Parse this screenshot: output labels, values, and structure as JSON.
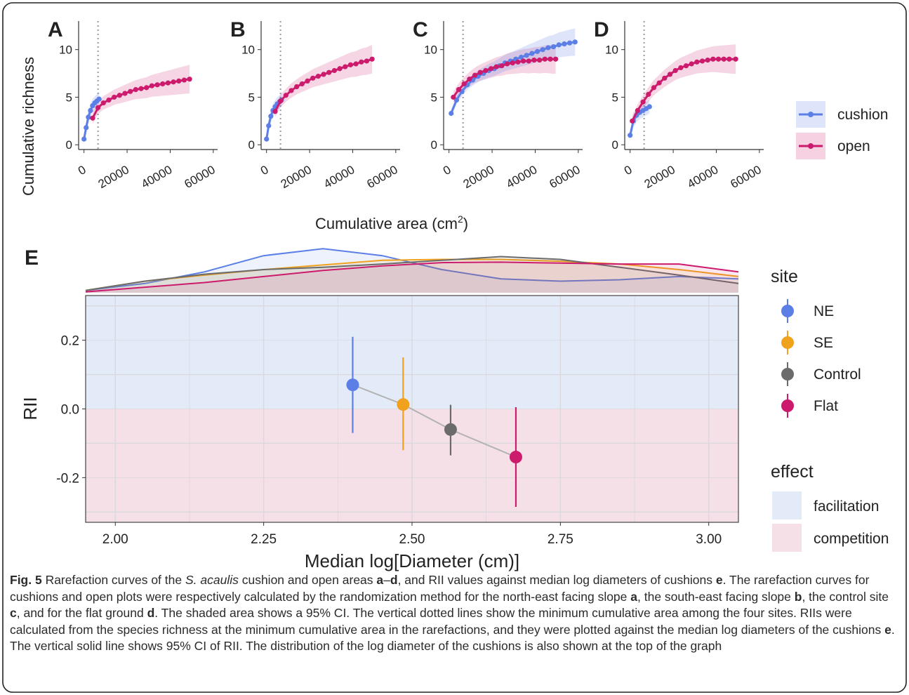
{
  "figure": {
    "panels_top": [
      {
        "label": "A",
        "cushion": {
          "x": [
            0,
            1000,
            2000,
            3000,
            4000,
            5000,
            6000,
            7000
          ],
          "y": [
            0.6,
            1.8,
            2.9,
            3.6,
            4.1,
            4.4,
            4.6,
            4.8
          ],
          "lo": [
            0.2,
            1.2,
            2.2,
            2.9,
            3.4,
            3.7,
            3.9,
            4.0
          ],
          "hi": [
            1.0,
            2.4,
            3.6,
            4.3,
            4.8,
            5.1,
            5.3,
            5.6
          ]
        },
        "open": {
          "x": [
            4000,
            6500,
            9000,
            11500,
            14000,
            16500,
            19000,
            21500,
            24000,
            26500,
            29000,
            31500,
            34000,
            36500,
            39000,
            41500,
            44000,
            46500,
            49000
          ],
          "y": [
            2.8,
            3.9,
            4.4,
            4.7,
            5.0,
            5.2,
            5.4,
            5.6,
            5.8,
            5.9,
            6.0,
            6.2,
            6.3,
            6.4,
            6.5,
            6.6,
            6.7,
            6.8,
            6.9
          ]
        }
      },
      {
        "label": "B",
        "cushion": {
          "x": [
            0,
            1000,
            2000,
            3000,
            4000,
            5000,
            6000,
            7000
          ],
          "y": [
            0.6,
            2.0,
            3.0,
            3.6,
            4.0,
            4.3,
            4.5,
            4.7
          ],
          "lo": [
            0.2,
            1.4,
            2.3,
            2.9,
            3.3,
            3.6,
            3.8,
            4.0
          ],
          "hi": [
            1.0,
            2.6,
            3.7,
            4.3,
            4.7,
            5.0,
            5.2,
            5.5
          ]
        },
        "open": {
          "x": [
            4000,
            6500,
            9000,
            11500,
            14000,
            16500,
            19000,
            21500,
            24000,
            26500,
            29000,
            31500,
            34000,
            36500,
            39000,
            41500,
            44000,
            46500,
            49000
          ],
          "y": [
            3.5,
            4.6,
            5.2,
            5.7,
            6.1,
            6.4,
            6.7,
            7.0,
            7.2,
            7.4,
            7.6,
            7.8,
            8.0,
            8.2,
            8.4,
            8.5,
            8.7,
            8.8,
            9.0
          ]
        }
      },
      {
        "label": "C",
        "cushion": {
          "x": [
            1000,
            3500,
            6000,
            8500,
            11000,
            13500,
            16000,
            18500,
            21000,
            23500,
            26000,
            28500,
            31000,
            33500,
            36000,
            38500,
            41000,
            43500,
            46000,
            48500,
            51000,
            53500,
            56000,
            58500
          ],
          "y": [
            3.3,
            4.7,
            5.6,
            6.3,
            6.8,
            7.2,
            7.5,
            7.8,
            8.0,
            8.3,
            8.6,
            8.8,
            9.0,
            9.2,
            9.4,
            9.6,
            9.8,
            10.0,
            10.2,
            10.3,
            10.5,
            10.6,
            10.7,
            10.8
          ]
        },
        "open": {
          "x": [
            2000,
            4500,
            7000,
            9500,
            12000,
            14500,
            17000,
            19500,
            22000,
            24500,
            27000,
            29500,
            32000,
            34500,
            37000,
            39500,
            42000,
            44500,
            47000,
            49500
          ],
          "y": [
            5.0,
            5.8,
            6.4,
            6.9,
            7.3,
            7.6,
            7.8,
            8.0,
            8.2,
            8.3,
            8.5,
            8.6,
            8.7,
            8.8,
            8.8,
            8.9,
            8.9,
            9.0,
            9.0,
            9.0
          ]
        }
      },
      {
        "label": "D",
        "cushion": {
          "x": [
            0,
            1500,
            3000,
            4500,
            6000,
            7500,
            9000
          ],
          "y": [
            1.0,
            2.5,
            3.1,
            3.4,
            3.6,
            3.8,
            4.0
          ],
          "lo": [
            0.5,
            1.8,
            2.4,
            2.7,
            2.9,
            3.1,
            3.3
          ],
          "hi": [
            1.5,
            3.2,
            3.8,
            4.1,
            4.3,
            4.5,
            4.7
          ]
        },
        "open": {
          "x": [
            1000,
            3500,
            6000,
            8500,
            11000,
            13500,
            16000,
            18500,
            21000,
            23500,
            26000,
            28500,
            31000,
            33500,
            36000,
            38500,
            41000,
            43500,
            46000,
            49000
          ],
          "y": [
            2.5,
            3.6,
            4.5,
            5.3,
            6.0,
            6.5,
            7.0,
            7.4,
            7.8,
            8.1,
            8.3,
            8.5,
            8.7,
            8.8,
            8.9,
            9.0,
            9.0,
            9.0,
            9.0,
            9.0
          ]
        }
      }
    ],
    "top_yticks": [
      "0",
      "5",
      "10"
    ],
    "top_xticks": [
      "0",
      "20000",
      "40000",
      "60000"
    ],
    "top_ylabel": "Cumulative richness",
    "top_xlabel": "Cumulative area (cm",
    "top_xlabel_sup": "2",
    "top_xlabel_close": ")",
    "legend_top": [
      "cushion",
      "open"
    ],
    "panel_e_label": "E",
    "legend_site_title": "site",
    "legend_effect_title": "effect",
    "effect_items": [
      "facilitation",
      "competition"
    ],
    "e_xlabel": "Median log[Diameter (cm)]",
    "e_ylabel": "RII",
    "e_xticks": [
      "2.00",
      "2.25",
      "2.50",
      "2.75",
      "3.00"
    ],
    "e_yticks": [
      "0.2",
      "0.0",
      "-0.2"
    ],
    "colors": {
      "cushion": "#5b7fe6",
      "open": "#cc1a6c",
      "NE": "#5b7fe6",
      "SE": "#f0a21f",
      "Control": "#6b6b6b",
      "Flat": "#cc1a6c",
      "facil_bg": "#e4ebf8",
      "comp_bg": "#f6e0e8",
      "grid": "#d8d8dd"
    }
  },
  "chart_data": [
    {
      "type": "line",
      "title": "A",
      "xlabel": "Cumulative area (cm2)",
      "ylabel": "Cumulative richness",
      "xlim": [
        -2500,
        62000
      ],
      "ylim": [
        -0.5,
        13
      ],
      "series": [
        {
          "name": "cushion",
          "x": [
            0,
            1000,
            2000,
            3000,
            4000,
            5000,
            6000,
            7000
          ],
          "values": [
            0.6,
            1.8,
            2.9,
            3.6,
            4.1,
            4.4,
            4.6,
            4.8
          ]
        },
        {
          "name": "open",
          "x": [
            4000,
            9000,
            14000,
            19000,
            24000,
            29000,
            34000,
            39000,
            44000,
            49000
          ],
          "values": [
            2.8,
            4.4,
            5.0,
            5.4,
            5.8,
            6.0,
            6.3,
            6.5,
            6.7,
            6.9
          ]
        }
      ]
    },
    {
      "type": "line",
      "title": "B",
      "xlabel": "Cumulative area (cm2)",
      "ylabel": "Cumulative richness",
      "xlim": [
        -2500,
        62000
      ],
      "ylim": [
        -0.5,
        13
      ],
      "series": [
        {
          "name": "cushion",
          "x": [
            0,
            1000,
            2000,
            3000,
            4000,
            5000,
            6000,
            7000
          ],
          "values": [
            0.6,
            2.0,
            3.0,
            3.6,
            4.0,
            4.3,
            4.5,
            4.7
          ]
        },
        {
          "name": "open",
          "x": [
            4000,
            9000,
            14000,
            19000,
            24000,
            29000,
            34000,
            39000,
            44000,
            49000
          ],
          "values": [
            3.5,
            5.2,
            6.1,
            6.7,
            7.2,
            7.6,
            8.0,
            8.4,
            8.7,
            9.0
          ]
        }
      ]
    },
    {
      "type": "line",
      "title": "C",
      "xlabel": "Cumulative area (cm2)",
      "ylabel": "Cumulative richness",
      "xlim": [
        -2500,
        62000
      ],
      "ylim": [
        -0.5,
        13
      ],
      "series": [
        {
          "name": "cushion",
          "x": [
            1000,
            11000,
            21000,
            31000,
            41000,
            51000,
            58500
          ],
          "values": [
            3.3,
            6.8,
            8.0,
            9.0,
            9.8,
            10.5,
            10.8
          ]
        },
        {
          "name": "open",
          "x": [
            2000,
            12000,
            22000,
            32000,
            42000,
            49500
          ],
          "values": [
            5.0,
            7.3,
            8.2,
            8.7,
            8.9,
            9.0
          ]
        }
      ]
    },
    {
      "type": "line",
      "title": "D",
      "xlabel": "Cumulative area (cm2)",
      "ylabel": "Cumulative richness",
      "xlim": [
        -2500,
        62000
      ],
      "ylim": [
        -0.5,
        13
      ],
      "series": [
        {
          "name": "cushion",
          "x": [
            0,
            1500,
            3000,
            4500,
            6000,
            7500,
            9000
          ],
          "values": [
            1.0,
            2.5,
            3.1,
            3.4,
            3.6,
            3.8,
            4.0
          ]
        },
        {
          "name": "open",
          "x": [
            1000,
            11000,
            21000,
            31000,
            41000,
            49000
          ],
          "values": [
            2.5,
            6.0,
            7.8,
            8.7,
            9.0,
            9.0
          ]
        }
      ]
    },
    {
      "type": "scatter",
      "title": "E",
      "xlabel": "Median log[Diameter (cm)]",
      "ylabel": "RII",
      "xlim": [
        1.95,
        3.05
      ],
      "ylim": [
        -0.33,
        0.33
      ],
      "series": [
        {
          "name": "NE",
          "x": [
            2.4
          ],
          "values": [
            0.07
          ],
          "ci": [
            [
              -0.07,
              0.21
            ]
          ]
        },
        {
          "name": "SE",
          "x": [
            2.485
          ],
          "values": [
            0.013
          ],
          "ci": [
            [
              -0.12,
              0.15
            ]
          ]
        },
        {
          "name": "Control",
          "x": [
            2.565
          ],
          "values": [
            -0.06
          ],
          "ci": [
            [
              -0.135,
              0.012
            ]
          ]
        },
        {
          "name": "Flat",
          "x": [
            2.675
          ],
          "values": [
            -0.14
          ],
          "ci": [
            [
              -0.285,
              0.005
            ]
          ]
        }
      ],
      "density": {
        "x": [
          1.95,
          2.05,
          2.15,
          2.25,
          2.35,
          2.45,
          2.55,
          2.65,
          2.75,
          2.85,
          2.95,
          3.05
        ],
        "NE": [
          0.05,
          0.2,
          0.45,
          0.8,
          0.95,
          0.8,
          0.5,
          0.3,
          0.25,
          0.28,
          0.35,
          0.3
        ],
        "SE": [
          0.05,
          0.25,
          0.38,
          0.5,
          0.6,
          0.7,
          0.72,
          0.72,
          0.68,
          0.62,
          0.5,
          0.35
        ],
        "Control": [
          0.05,
          0.25,
          0.4,
          0.5,
          0.55,
          0.62,
          0.7,
          0.78,
          0.72,
          0.55,
          0.38,
          0.2
        ],
        "Flat": [
          0.02,
          0.12,
          0.22,
          0.35,
          0.48,
          0.58,
          0.65,
          0.66,
          0.64,
          0.62,
          0.62,
          0.45
        ]
      }
    }
  ],
  "caption": {
    "p1": "Fig. 5",
    "p2": " Rarefaction curves of the ",
    "p3": "S. acaulis",
    "p4": " cushion and open areas ",
    "p5": "a",
    "p6": "–",
    "p7": "d",
    "p8": ", and RII values against median log diameters of cushions ",
    "p9": "e",
    "p10": ". The rarefaction curves for cushions and open plots were respectively calculated by the randomization method for the north-east facing slope ",
    "p11": "a",
    "p12": ", the south-east facing slope ",
    "p13": "b",
    "p14": ", the control site ",
    "p15": "c",
    "p16": ", and for the flat ground ",
    "p17": "d",
    "p18": ". The shaded area shows a 95% CI. The vertical dotted lines show the minimum cumulative area among the four sites. RIIs were calculated from the species richness at the minimum cumulative area in the rarefactions, and they were plotted against the median log diameters of the cushions ",
    "p19": "e",
    "p20": ". The vertical solid line shows 95% CI of RII. The distribution of the log diameter of the cushions is also shown at the top of the graph"
  }
}
